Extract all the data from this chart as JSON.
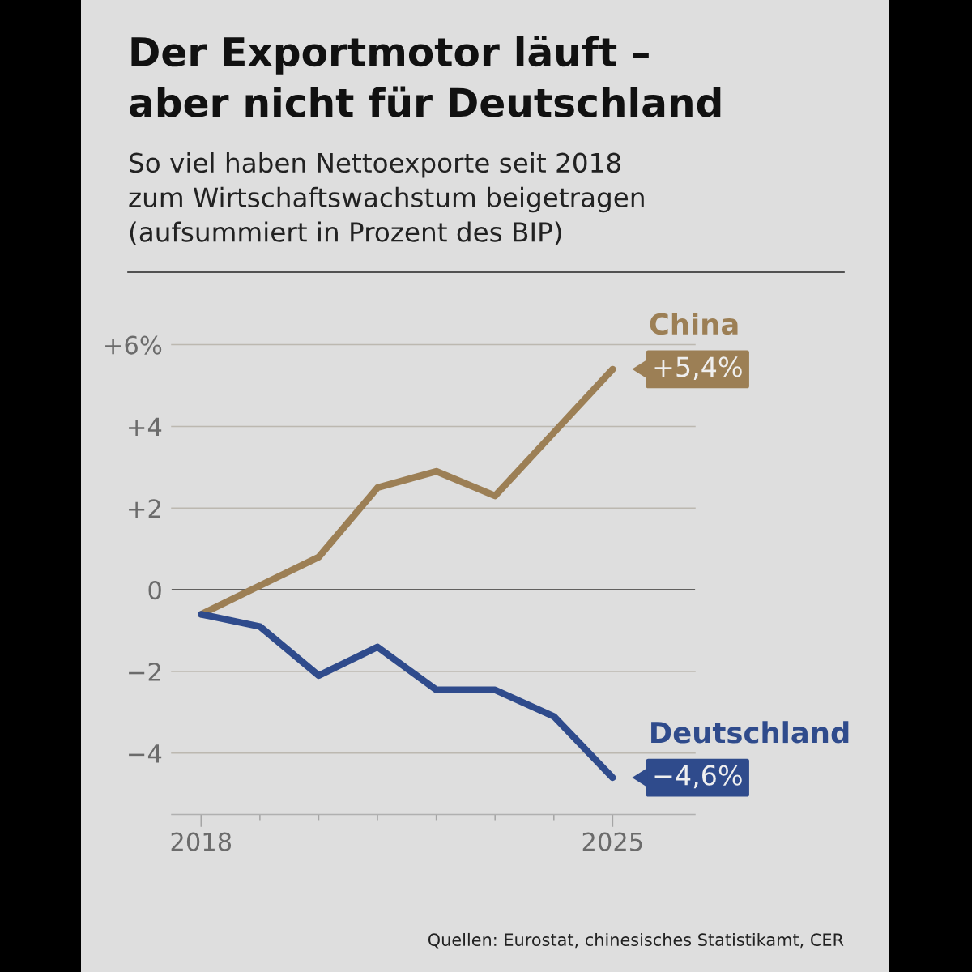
{
  "chart_data": {
    "type": "line",
    "title": "Der Exportmotor läuft –\naber nicht für Deutschland",
    "subtitle": "So viel haben Nettoexporte seit 2018\nzum Wirtschaftswachstum beigetragen\n(aufsummiert in Prozent des BIP)",
    "x": [
      2018,
      2019,
      2020,
      2021,
      2022,
      2023,
      2024,
      2025
    ],
    "series": [
      {
        "name": "China",
        "color": "#9c7f55",
        "values": [
          -0.6,
          0.1,
          0.8,
          2.5,
          2.9,
          2.3,
          3.85,
          5.4
        ],
        "value_labels": [
          null,
          null,
          null,
          null,
          null,
          null,
          null,
          "+5,4%"
        ]
      },
      {
        "name": "Deutschland",
        "color": "#2f4b8c",
        "values": [
          -0.6,
          -0.9,
          -2.1,
          -1.4,
          -2.45,
          -2.45,
          -3.1,
          -4.6
        ],
        "value_labels": [
          null,
          null,
          null,
          null,
          null,
          null,
          null,
          "−4,6%"
        ]
      }
    ],
    "xlim": [
      2017.5,
      2026.4
    ],
    "xticks": [
      2018,
      {
        "value": 2019,
        "label": null
      },
      {
        "value": 2020,
        "label": null
      },
      {
        "value": 2021,
        "label": null
      },
      {
        "value": 2022,
        "label": null
      },
      {
        "value": 2023,
        "label": null
      },
      {
        "value": 2024,
        "label": null
      },
      2025
    ],
    "ylim": [
      -5.5,
      6
    ],
    "yticks": [
      {
        "value": 6,
        "label": "+6%"
      },
      {
        "value": 4,
        "label": "+4"
      },
      {
        "value": 2,
        "label": "+2"
      },
      0,
      {
        "value": -2,
        "label": "−2"
      },
      {
        "value": -4,
        "label": "−4"
      }
    ],
    "grid": "y",
    "ref_lines": [
      {
        "axis": "y",
        "value": 0,
        "color": "#3c3c3c"
      }
    ],
    "line_style": "solid",
    "annotations": [
      "Quellen: Eurostat, chinesisches Statistikamt, CER"
    ]
  }
}
